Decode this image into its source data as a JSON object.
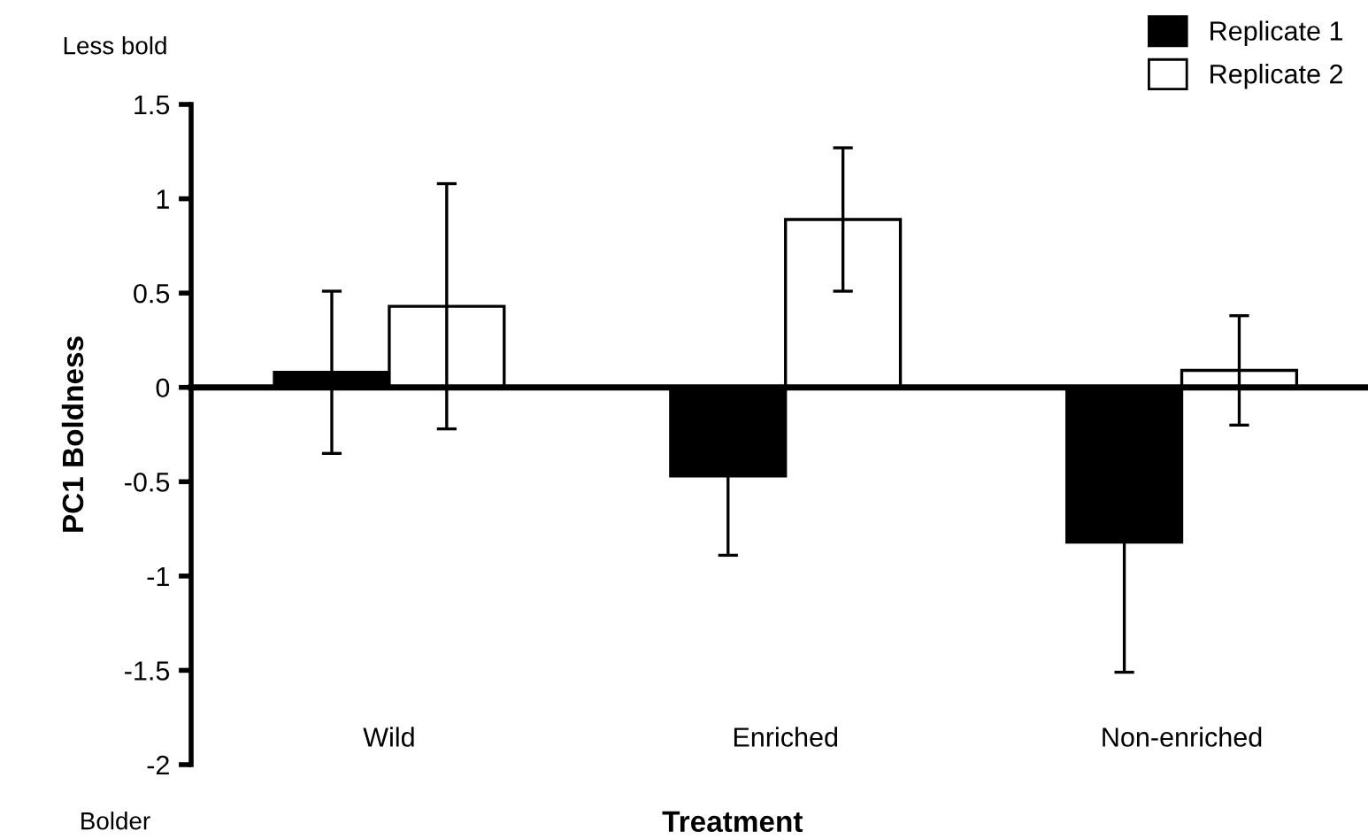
{
  "chart_data": {
    "type": "bar",
    "xlabel": "Treatment",
    "ylabel": "PC1 Boldness",
    "categories": [
      "Wild",
      "Enriched",
      "Non-enriched"
    ],
    "series": [
      {
        "name": "Replicate 1",
        "color": "#000000",
        "values": [
          0.08,
          -0.47,
          -0.82
        ],
        "errors": [
          0.43,
          0.42,
          0.69
        ]
      },
      {
        "name": "Replicate 2",
        "color": "#ffffff",
        "values": [
          0.43,
          0.89,
          0.09
        ],
        "errors": [
          0.65,
          0.38,
          0.29
        ]
      }
    ],
    "ylim": [
      -2,
      1.5
    ],
    "yticks": [
      {
        "value": 1.5,
        "label": "1.5"
      },
      {
        "value": 1,
        "label": "1"
      },
      {
        "value": 0.5,
        "label": "0.5"
      },
      {
        "value": 0,
        "label": "0"
      },
      {
        "value": -0.5,
        "label": "-0.5"
      },
      {
        "value": -1,
        "label": "-1"
      },
      {
        "value": -1.5,
        "label": "-1.5"
      },
      {
        "value": -2,
        "label": "-2"
      }
    ],
    "annotations": [
      "Less bold",
      "Bolder"
    ],
    "legend": "top right"
  }
}
